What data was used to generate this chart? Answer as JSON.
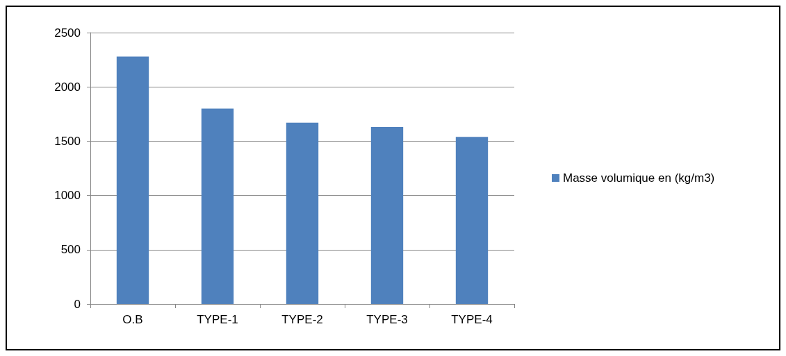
{
  "chart_data": {
    "type": "bar",
    "categories": [
      "O.B",
      "TYPE-1",
      "TYPE-2",
      "TYPE-3",
      "TYPE-4"
    ],
    "series": [
      {
        "name": "Masse volumique en (kg/m3)",
        "color": "#4f81bd",
        "values": [
          2280,
          1800,
          1670,
          1630,
          1540
        ]
      }
    ],
    "ylim": [
      0,
      2500
    ],
    "yticks": [
      0,
      500,
      1000,
      1500,
      2000,
      2500
    ],
    "grid": "y",
    "legend": "right"
  }
}
